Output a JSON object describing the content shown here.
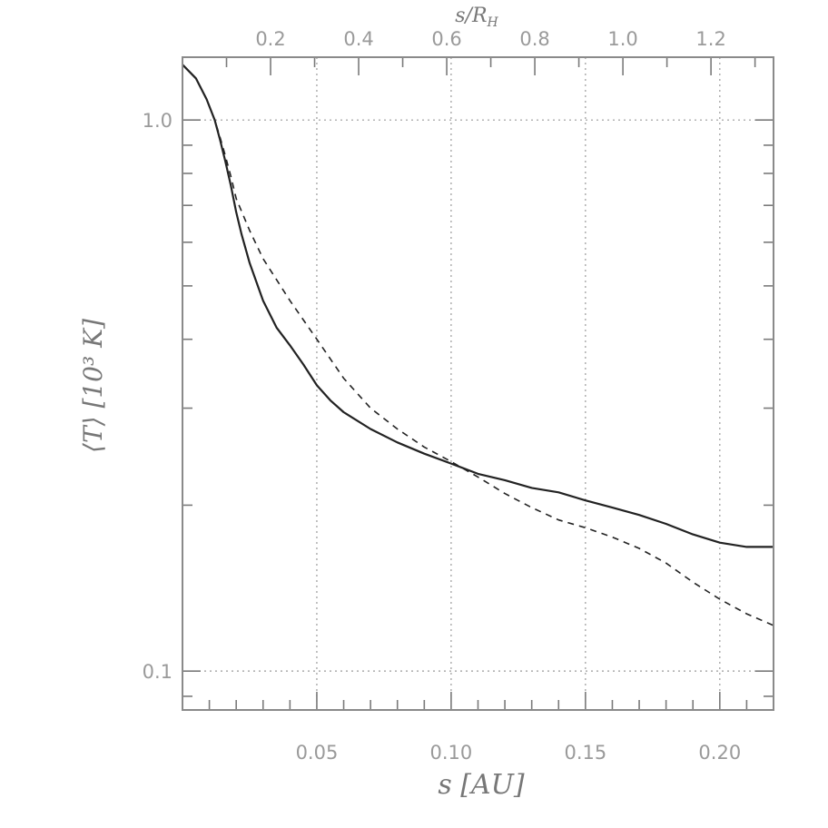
{
  "chart_data": {
    "type": "line",
    "title": "",
    "xlabel": "s [AU]",
    "xlabel_top": "s/R_H",
    "ylabel": "⟨T⟩ [10³ K]",
    "xlim": [
      0.0,
      0.22
    ],
    "ylim": [
      0.085,
      1.3
    ],
    "yscale": "log",
    "x_ticks": [
      {
        "value": 0.05,
        "label": "0.05"
      },
      {
        "value": 0.1,
        "label": "0.10"
      },
      {
        "value": 0.15,
        "label": "0.15"
      },
      {
        "value": 0.2,
        "label": "0.20"
      }
    ],
    "x_top_ticks": [
      {
        "value": 0.2,
        "label": "0.2"
      },
      {
        "value": 0.4,
        "label": "0.4"
      },
      {
        "value": 0.6,
        "label": "0.6"
      },
      {
        "value": 0.8,
        "label": "0.8"
      },
      {
        "value": 1.0,
        "label": "1.0"
      },
      {
        "value": 1.2,
        "label": "1.2"
      }
    ],
    "x_top_per_bottom": 6.1,
    "y_ticks": [
      {
        "value": 0.1,
        "label": "0.1"
      },
      {
        "value": 1.0,
        "label": "1.0"
      }
    ],
    "grid": true,
    "series": [
      {
        "style": "solid",
        "color": "#222222",
        "x": [
          0.0,
          0.005,
          0.009,
          0.012,
          0.014,
          0.016,
          0.018,
          0.02,
          0.022,
          0.025,
          0.03,
          0.035,
          0.04,
          0.045,
          0.05,
          0.055,
          0.06,
          0.07,
          0.08,
          0.09,
          0.1,
          0.11,
          0.12,
          0.13,
          0.14,
          0.15,
          0.16,
          0.17,
          0.18,
          0.19,
          0.2,
          0.21,
          0.22
        ],
        "y": [
          1.26,
          1.19,
          1.09,
          1.0,
          0.92,
          0.84,
          0.76,
          0.68,
          0.62,
          0.55,
          0.47,
          0.42,
          0.39,
          0.36,
          0.33,
          0.31,
          0.295,
          0.275,
          0.26,
          0.248,
          0.238,
          0.228,
          0.222,
          0.215,
          0.211,
          0.204,
          0.198,
          0.192,
          0.185,
          0.177,
          0.171,
          0.168,
          0.168
        ]
      },
      {
        "style": "dashed",
        "color": "#222222",
        "x": [
          0.0,
          0.005,
          0.009,
          0.012,
          0.014,
          0.016,
          0.018,
          0.02,
          0.025,
          0.03,
          0.04,
          0.05,
          0.06,
          0.07,
          0.08,
          0.09,
          0.1,
          0.11,
          0.12,
          0.13,
          0.14,
          0.15,
          0.16,
          0.17,
          0.18,
          0.19,
          0.2,
          0.21,
          0.22
        ],
        "y": [
          1.26,
          1.19,
          1.09,
          1.0,
          0.93,
          0.86,
          0.79,
          0.72,
          0.63,
          0.56,
          0.47,
          0.4,
          0.34,
          0.3,
          0.275,
          0.255,
          0.24,
          0.225,
          0.21,
          0.198,
          0.188,
          0.182,
          0.175,
          0.167,
          0.157,
          0.145,
          0.135,
          0.127,
          0.121
        ]
      }
    ]
  }
}
